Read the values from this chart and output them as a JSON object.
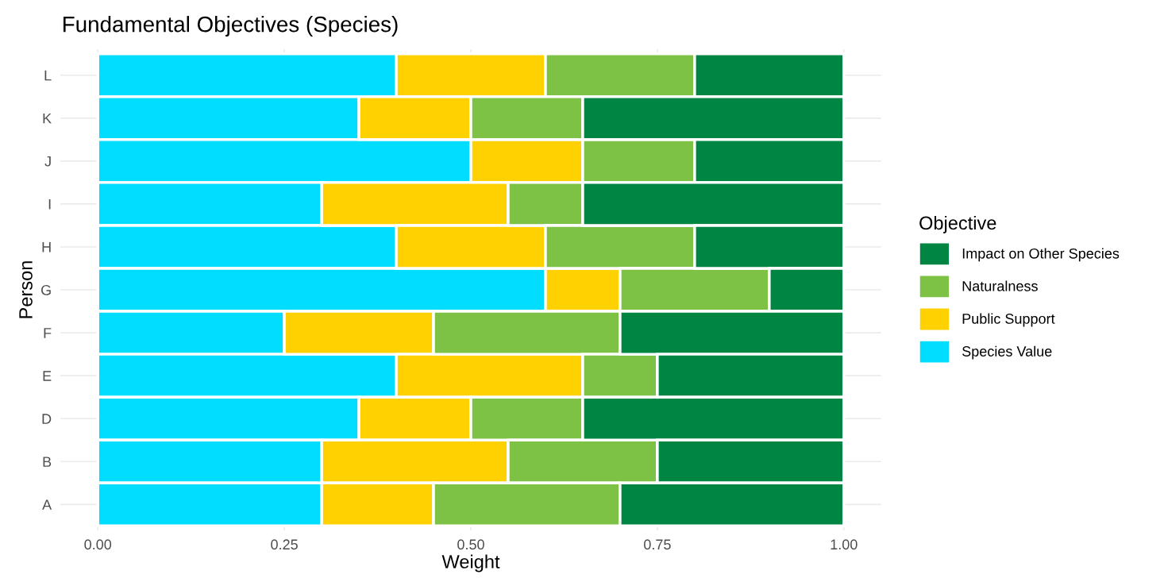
{
  "chart_data": {
    "type": "bar",
    "title": "Fundamental Objectives (Species)",
    "xlabel": "Weight",
    "ylabel": "Person",
    "legend_title": "Objective",
    "orientation": "horizontal",
    "stacked": true,
    "categories": [
      "L",
      "K",
      "J",
      "I",
      "H",
      "G",
      "F",
      "E",
      "D",
      "B",
      "A"
    ],
    "series": [
      {
        "name": "Species Value",
        "color": "#00ddff",
        "values": [
          0.4,
          0.35,
          0.5,
          0.3,
          0.4,
          0.6,
          0.25,
          0.4,
          0.35,
          0.3,
          0.3
        ]
      },
      {
        "name": "Public Support",
        "color": "#ffd100",
        "values": [
          0.2,
          0.15,
          0.15,
          0.25,
          0.2,
          0.1,
          0.2,
          0.25,
          0.15,
          0.25,
          0.15
        ]
      },
      {
        "name": "Naturalness",
        "color": "#7dc244",
        "values": [
          0.2,
          0.15,
          0.15,
          0.1,
          0.2,
          0.2,
          0.25,
          0.1,
          0.15,
          0.2,
          0.25
        ]
      },
      {
        "name": "Impact on Other Species",
        "color": "#008542",
        "values": [
          0.2,
          0.35,
          0.2,
          0.35,
          0.2,
          0.1,
          0.3,
          0.25,
          0.35,
          0.25,
          0.3
        ]
      }
    ],
    "xlim": [
      -0.05,
      1.05
    ],
    "xticks": [
      {
        "value": 0,
        "label": "0.00"
      },
      {
        "value": 0.25,
        "label": "0.25"
      },
      {
        "value": 0.5,
        "label": "0.50"
      },
      {
        "value": 0.75,
        "label": "0.75"
      },
      {
        "value": 1,
        "label": "1.00"
      }
    ],
    "grid": true,
    "legend": "right"
  }
}
